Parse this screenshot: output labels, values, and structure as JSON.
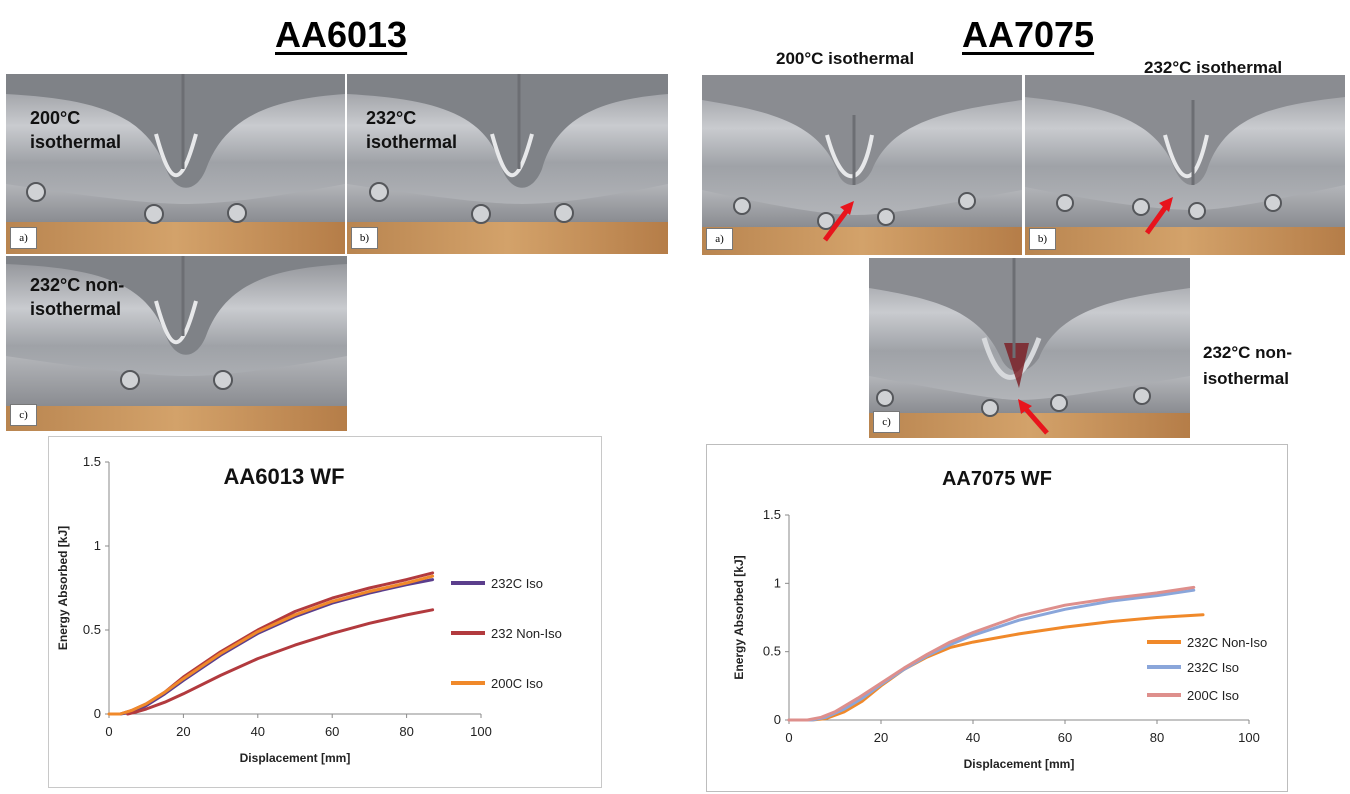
{
  "headings": {
    "left": "AA6013",
    "right": "AA7075"
  },
  "photos": {
    "aa6013": [
      {
        "tag": "a)",
        "label": [
          "200°C",
          "isothermal"
        ]
      },
      {
        "tag": "b)",
        "label": [
          "232°C",
          "isothermal"
        ]
      },
      {
        "tag": "c)",
        "label": [
          "232°C non-",
          "isothermal"
        ]
      }
    ],
    "aa7075": [
      {
        "tag": "a)",
        "caption": "200°C isothermal"
      },
      {
        "tag": "b)",
        "caption": "232°C isothermal"
      },
      {
        "tag": "c)",
        "caption": [
          "232°C non-",
          "isothermal"
        ]
      }
    ]
  },
  "colors": {
    "purple": "#5b3e8c",
    "darkred": "#b23a3e",
    "orange": "#f0892a",
    "blue": "#8aa6da",
    "pink": "#de8f8c",
    "arrow": "#e8141c",
    "metal": "#a9acb1",
    "wood": "#c8955a"
  },
  "chart_data": [
    {
      "type": "line",
      "title": "AA6013 WF",
      "xlabel": "Displacement [mm]",
      "ylabel": "Energy Absorbed [kJ]",
      "xlim": [
        0,
        100
      ],
      "ylim": [
        0,
        1.5
      ],
      "xticks": [
        "0",
        "20",
        "40",
        "60",
        "80",
        "100"
      ],
      "yticks": [
        "0",
        "0.5",
        "1",
        "1.5"
      ],
      "legend_position": "right",
      "grid": false,
      "series": [
        {
          "name": "232C Iso",
          "color": "#5b3e8c",
          "x": [
            3,
            6,
            10,
            15,
            20,
            30,
            40,
            50,
            60,
            70,
            80,
            87
          ],
          "y": [
            0,
            0.01,
            0.05,
            0.12,
            0.2,
            0.35,
            0.48,
            0.58,
            0.66,
            0.72,
            0.77,
            0.8
          ]
        },
        {
          "name": "232 Non-Iso",
          "color": "#b23a3e",
          "x": [
            5,
            7,
            10,
            15,
            20,
            30,
            40,
            50,
            60,
            70,
            80,
            87
          ],
          "y": [
            0,
            0.01,
            0.03,
            0.07,
            0.12,
            0.23,
            0.33,
            0.41,
            0.48,
            0.54,
            0.59,
            0.62
          ]
        },
        {
          "name": "200C Iso",
          "color": "#f0892a",
          "x": [
            0,
            3,
            6,
            10,
            15,
            20,
            30,
            40,
            50,
            60,
            70,
            80,
            87
          ],
          "y": [
            0,
            0,
            0.02,
            0.06,
            0.13,
            0.21,
            0.36,
            0.49,
            0.59,
            0.67,
            0.73,
            0.78,
            0.82
          ]
        }
      ],
      "extra_series": {
        "name": "",
        "color": "#b23a3e",
        "x": [
          3,
          6,
          10,
          15,
          20,
          30,
          40,
          50,
          60,
          70,
          80,
          87
        ],
        "y": [
          0,
          0.02,
          0.06,
          0.13,
          0.22,
          0.37,
          0.5,
          0.61,
          0.69,
          0.75,
          0.8,
          0.84
        ]
      }
    },
    {
      "type": "line",
      "title": "AA7075 WF",
      "xlabel": "Displacement [mm]",
      "ylabel": "Energy Absorbed [kJ]",
      "xlim": [
        0,
        100
      ],
      "ylim": [
        0,
        1.5
      ],
      "xticks": [
        "0",
        "20",
        "40",
        "60",
        "80",
        "100"
      ],
      "yticks": [
        "0",
        "0.5",
        "1",
        "1.5"
      ],
      "legend_position": "right",
      "grid": false,
      "series": [
        {
          "name": "232C Non-Iso",
          "color": "#f0892a",
          "x": [
            0,
            5,
            8,
            12,
            16,
            20,
            25,
            30,
            35,
            40,
            50,
            60,
            70,
            80,
            90
          ],
          "y": [
            0,
            0,
            0.01,
            0.06,
            0.14,
            0.25,
            0.37,
            0.46,
            0.53,
            0.57,
            0.63,
            0.68,
            0.72,
            0.75,
            0.77
          ]
        },
        {
          "name": "232C Iso",
          "color": "#8aa6da",
          "x": [
            0,
            5,
            8,
            12,
            16,
            20,
            25,
            30,
            35,
            40,
            50,
            60,
            70,
            80,
            88
          ],
          "y": [
            0,
            0,
            0.02,
            0.08,
            0.16,
            0.26,
            0.37,
            0.47,
            0.55,
            0.62,
            0.73,
            0.81,
            0.87,
            0.91,
            0.95
          ]
        },
        {
          "name": "200C Iso",
          "color": "#de8f8c",
          "x": [
            0,
            4,
            7,
            10,
            15,
            20,
            25,
            30,
            35,
            40,
            50,
            60,
            70,
            80,
            88
          ],
          "y": [
            0,
            0,
            0.02,
            0.06,
            0.16,
            0.27,
            0.38,
            0.48,
            0.57,
            0.64,
            0.76,
            0.84,
            0.89,
            0.93,
            0.97
          ]
        }
      ]
    }
  ]
}
